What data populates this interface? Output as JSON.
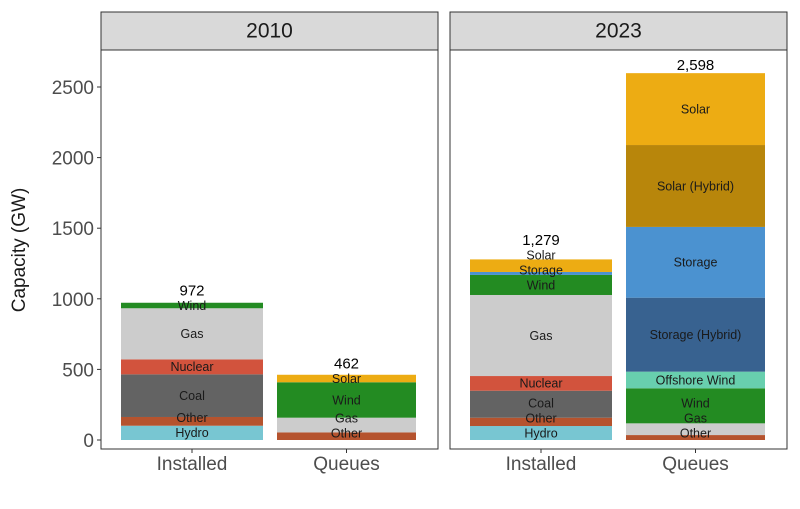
{
  "chart_data": {
    "type": "bar",
    "stacked": true,
    "ylabel": "Capacity (GW)",
    "xlabel": "",
    "ylim": [
      0,
      2700
    ],
    "yticks": [
      "0",
      "500",
      "1000",
      "1500",
      "2000",
      "2500"
    ],
    "grid": false,
    "legend": "none",
    "colors": {
      "Hydro": "#78c6d2",
      "Other": "#b5532e",
      "Coal": "#636363",
      "Nuclear": "#d2533d",
      "Gas": "#cccccc",
      "Wind": "#238b22",
      "Storage": "#4b92d0",
      "Solar": "#edac13",
      "Offshore Wind": "#68cfae",
      "Storage (Hybrid)": "#386290",
      "Solar (Hybrid)": "#b8860b"
    },
    "panels": [
      {
        "title": "2010",
        "categories": [
          "Installed",
          "Queues"
        ],
        "bars": [
          {
            "category": "Installed",
            "total": "972",
            "segments": [
              {
                "name": "Hydro",
                "value": 101
              },
              {
                "name": "Other",
                "value": 62
              },
              {
                "name": "Coal",
                "value": 302
              },
              {
                "name": "Nuclear",
                "value": 106
              },
              {
                "name": "Gas",
                "value": 362
              },
              {
                "name": "Wind",
                "value": 39
              }
            ]
          },
          {
            "category": "Queues",
            "total": "462",
            "segments": [
              {
                "name": "Other",
                "value": 54
              },
              {
                "name": "Gas",
                "value": 104
              },
              {
                "name": "Wind",
                "value": 251
              },
              {
                "name": "Solar",
                "value": 53
              }
            ]
          }
        ]
      },
      {
        "title": "2023",
        "categories": [
          "Installed",
          "Queues"
        ],
        "bars": [
          {
            "category": "Installed",
            "total": "1,279",
            "segments": [
              {
                "name": "Hydro",
                "value": 99
              },
              {
                "name": "Other",
                "value": 59
              },
              {
                "name": "Coal",
                "value": 191
              },
              {
                "name": "Nuclear",
                "value": 104
              },
              {
                "name": "Gas",
                "value": 574
              },
              {
                "name": "Wind",
                "value": 142
              },
              {
                "name": "Storage",
                "value": 21
              },
              {
                "name": "Solar",
                "value": 89
              }
            ]
          },
          {
            "category": "Queues",
            "total": "2,598",
            "segments": [
              {
                "name": "Other",
                "value": 35
              },
              {
                "name": "Gas",
                "value": 83
              },
              {
                "name": "Wind",
                "value": 248
              },
              {
                "name": "Offshore Wind",
                "value": 118
              },
              {
                "name": "Storage (Hybrid)",
                "value": 524
              },
              {
                "name": "Storage",
                "value": 501
              },
              {
                "name": "Solar (Hybrid)",
                "value": 580
              },
              {
                "name": "Solar",
                "value": 509
              }
            ]
          }
        ]
      }
    ]
  }
}
